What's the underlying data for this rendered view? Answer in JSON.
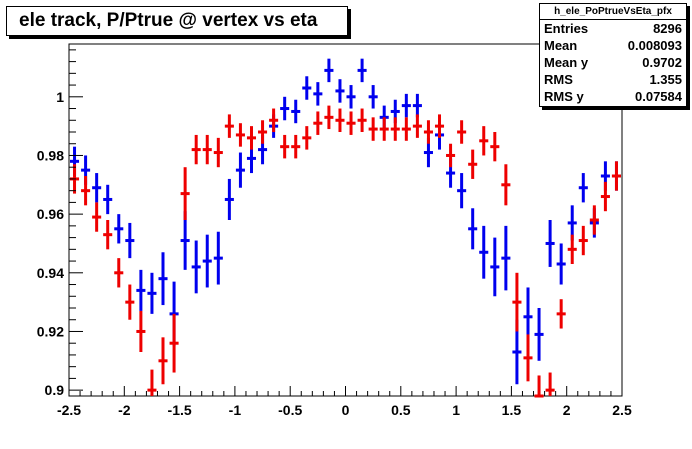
{
  "title": "ele track, P/Ptrue @ vertex vs eta",
  "stats": {
    "name": "h_ele_PoPtrueVsEta_pfx",
    "rows": [
      {
        "label": "Entries",
        "value": "8296"
      },
      {
        "label": "Mean",
        "value": "0.008093"
      },
      {
        "label": "Mean y",
        "value": "0.9702"
      },
      {
        "label": "RMS",
        "value": "1.355"
      },
      {
        "label": "RMS y",
        "value": "0.07584"
      }
    ]
  },
  "chart_data": {
    "type": "scatter",
    "title": "ele track, P/Ptrue @ vertex vs eta",
    "xlabel": "",
    "ylabel": "",
    "xlim": [
      -2.5,
      2.5
    ],
    "ylim": [
      0.898,
      1.018
    ],
    "xticks": [
      -2.5,
      -2,
      -1.5,
      -1,
      -0.5,
      0,
      0.5,
      1,
      1.5,
      2,
      2.5
    ],
    "xtick_labels": [
      "-2.5",
      "-2",
      "-1.5",
      "-1",
      "-0.5",
      "0",
      "0.5",
      "1",
      "1.5",
      "2",
      "2.5"
    ],
    "yticks": [
      0.9,
      0.92,
      0.94,
      0.96,
      0.98,
      1.0
    ],
    "ytick_labels": [
      "0.9",
      "0.92",
      "0.94",
      "0.96",
      "0.98",
      "1"
    ],
    "grid": false,
    "bin_width": 0.1,
    "series": [
      {
        "color": "#0000ee",
        "x": [
          -2.45,
          -2.35,
          -2.25,
          -2.15,
          -2.05,
          -1.95,
          -1.85,
          -1.75,
          -1.65,
          -1.55,
          -1.45,
          -1.35,
          -1.25,
          -1.15,
          -1.05,
          -0.95,
          -0.85,
          -0.75,
          -0.65,
          -0.55,
          -0.45,
          -0.35,
          -0.25,
          -0.15,
          -0.05,
          0.05,
          0.15,
          0.25,
          0.35,
          0.45,
          0.55,
          0.65,
          0.75,
          0.85,
          0.95,
          1.05,
          1.15,
          1.25,
          1.35,
          1.45,
          1.55,
          1.65,
          1.75,
          1.85,
          1.95,
          2.05,
          2.15,
          2.25,
          2.35,
          2.45
        ],
        "y": [
          0.978,
          0.975,
          0.969,
          0.965,
          0.955,
          0.951,
          0.934,
          0.933,
          0.938,
          0.926,
          0.951,
          0.942,
          0.944,
          0.945,
          0.965,
          0.975,
          0.979,
          0.982,
          0.99,
          0.996,
          0.995,
          1.003,
          1.001,
          1.009,
          1.002,
          1.0,
          1.009,
          1.0,
          0.993,
          0.995,
          0.997,
          0.997,
          0.981,
          0.987,
          0.974,
          0.968,
          0.955,
          0.947,
          0.942,
          0.945,
          0.913,
          0.925,
          0.919,
          0.95,
          0.943,
          0.957,
          0.969,
          0.957,
          0.973,
          0.973
        ],
        "yerr": [
          0.005,
          0.005,
          0.005,
          0.005,
          0.005,
          0.006,
          0.007,
          0.007,
          0.009,
          0.011,
          0.01,
          0.009,
          0.009,
          0.009,
          0.007,
          0.006,
          0.005,
          0.005,
          0.004,
          0.004,
          0.004,
          0.004,
          0.004,
          0.004,
          0.004,
          0.004,
          0.004,
          0.004,
          0.004,
          0.004,
          0.004,
          0.004,
          0.005,
          0.005,
          0.005,
          0.006,
          0.007,
          0.009,
          0.01,
          0.011,
          0.011,
          0.01,
          0.009,
          0.008,
          0.007,
          0.006,
          0.005,
          0.005,
          0.005,
          0.005
        ]
      },
      {
        "color": "#ee0000",
        "x": [
          -2.45,
          -2.35,
          -2.25,
          -2.15,
          -2.05,
          -1.95,
          -1.85,
          -1.75,
          -1.65,
          -1.55,
          -1.45,
          -1.35,
          -1.25,
          -1.15,
          -1.05,
          -0.95,
          -0.85,
          -0.75,
          -0.65,
          -0.55,
          -0.45,
          -0.35,
          -0.25,
          -0.15,
          -0.05,
          0.05,
          0.15,
          0.25,
          0.35,
          0.45,
          0.55,
          0.65,
          0.75,
          0.85,
          0.95,
          1.05,
          1.15,
          1.25,
          1.35,
          1.45,
          1.55,
          1.65,
          1.75,
          1.85,
          1.95,
          2.05,
          2.15,
          2.25,
          2.35,
          2.45
        ],
        "y": [
          0.972,
          0.968,
          0.959,
          0.953,
          0.94,
          0.93,
          0.92,
          0.9,
          0.91,
          0.916,
          0.967,
          0.982,
          0.982,
          0.981,
          0.99,
          0.987,
          0.986,
          0.988,
          0.992,
          0.983,
          0.983,
          0.986,
          0.991,
          0.993,
          0.992,
          0.991,
          0.992,
          0.989,
          0.989,
          0.989,
          0.989,
          0.99,
          0.988,
          0.99,
          0.98,
          0.988,
          0.977,
          0.985,
          0.983,
          0.97,
          0.93,
          0.911,
          0.898,
          0.9,
          0.926,
          0.948,
          0.951,
          0.958,
          0.966,
          0.973
        ],
        "yerr": [
          0.005,
          0.005,
          0.005,
          0.005,
          0.005,
          0.006,
          0.007,
          0.007,
          0.008,
          0.01,
          0.009,
          0.005,
          0.005,
          0.005,
          0.004,
          0.004,
          0.004,
          0.004,
          0.004,
          0.004,
          0.004,
          0.004,
          0.004,
          0.004,
          0.004,
          0.004,
          0.004,
          0.004,
          0.004,
          0.004,
          0.004,
          0.004,
          0.004,
          0.004,
          0.004,
          0.004,
          0.005,
          0.005,
          0.005,
          0.007,
          0.01,
          0.008,
          0.007,
          0.006,
          0.005,
          0.005,
          0.005,
          0.005,
          0.005,
          0.005
        ]
      }
    ]
  }
}
